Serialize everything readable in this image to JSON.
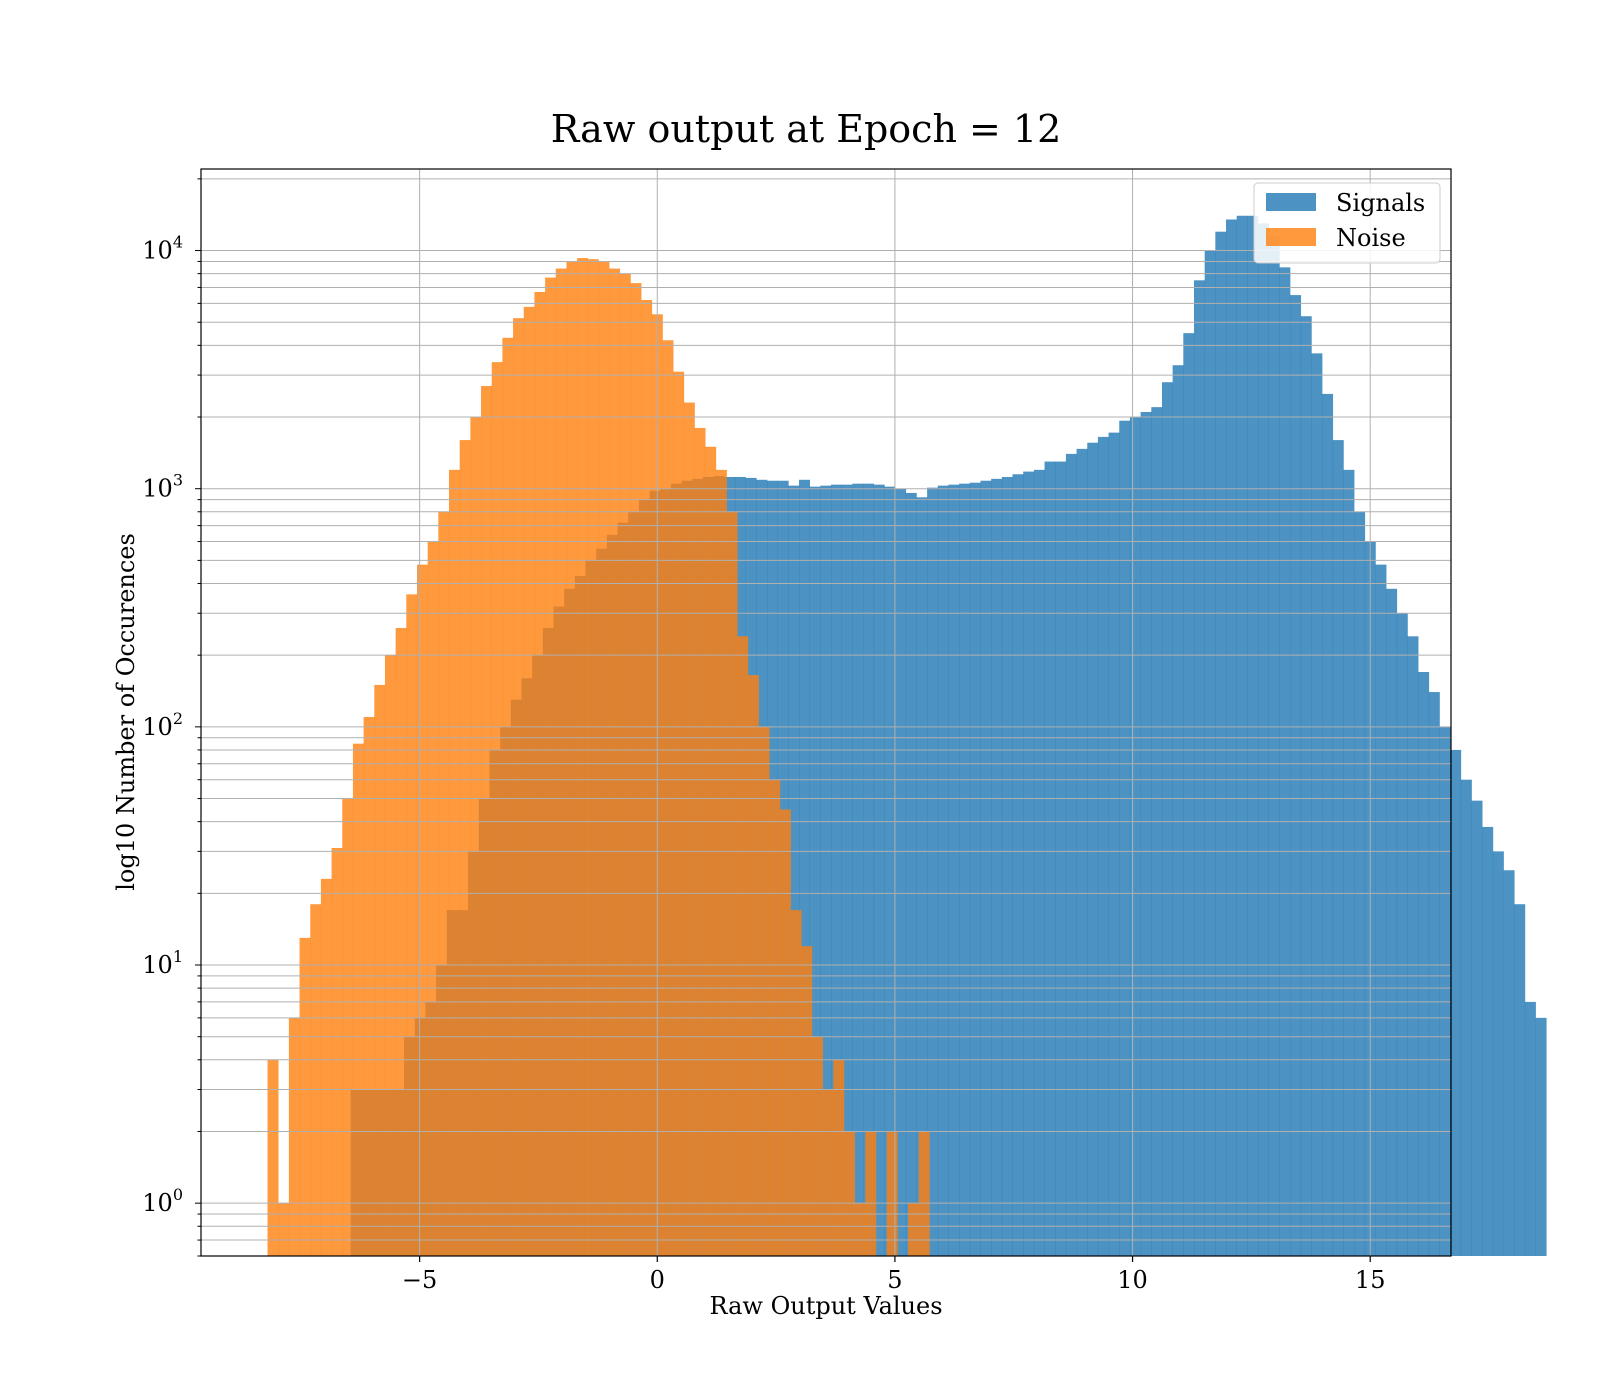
{
  "chart_data": {
    "type": "histogram",
    "title": "Raw output at Epoch = 12",
    "xlabel": "Raw Output Values",
    "ylabel": "log10 Number of Occurences",
    "xlim": [
      -9.6,
      16.7
    ],
    "ylim": [
      0.6,
      22000
    ],
    "yscale": "log",
    "grid": true,
    "legend_position": "top-right",
    "x_ticks": [
      {
        "value": -5,
        "label": "−5"
      },
      {
        "value": 0,
        "label": "0"
      },
      {
        "value": 5,
        "label": "5"
      },
      {
        "value": 10,
        "label": "10"
      },
      {
        "value": 15,
        "label": "15"
      }
    ],
    "y_ticks": [
      {
        "value": 1,
        "base": "10",
        "exp": "0"
      },
      {
        "value": 10,
        "base": "10",
        "exp": "1"
      },
      {
        "value": 100,
        "base": "10",
        "exp": "2"
      },
      {
        "value": 1000,
        "base": "10",
        "exp": "3"
      },
      {
        "value": 10000,
        "base": "10",
        "exp": "4"
      }
    ],
    "series": [
      {
        "name": "Signals",
        "color": "#1f77b4",
        "bin_start": -6.9,
        "bin_width": 0.2246,
        "counts": [
          0,
          0,
          3,
          3,
          3,
          3,
          3,
          5,
          6,
          7,
          10,
          17,
          17,
          30,
          50,
          80,
          100,
          130,
          160,
          200,
          260,
          320,
          380,
          430,
          500,
          560,
          640,
          720,
          800,
          900,
          980,
          1000,
          1050,
          1080,
          1100,
          1120,
          1130,
          1120,
          1120,
          1110,
          1090,
          1080,
          1080,
          1030,
          1090,
          1020,
          1030,
          1040,
          1040,
          1050,
          1050,
          1040,
          1020,
          1000,
          960,
          920,
          1010,
          1030,
          1040,
          1050,
          1060,
          1080,
          1100,
          1120,
          1150,
          1180,
          1200,
          1300,
          1300,
          1400,
          1470,
          1560,
          1650,
          1720,
          1930,
          2000,
          2100,
          2200,
          2800,
          3300,
          4500,
          7500,
          10000,
          12000,
          13500,
          14000,
          14000,
          13000,
          11500,
          8500,
          6500,
          5300,
          3700,
          2500,
          1600,
          1200,
          800,
          600,
          480,
          380,
          300,
          240,
          170,
          140,
          100,
          80,
          60,
          49,
          38,
          30,
          25,
          18,
          7,
          6
        ]
      },
      {
        "name": "Noise",
        "color": "#ff7f0e",
        "bin_start": -8.2,
        "bin_width": 0.2246,
        "counts": [
          4,
          1,
          6,
          13,
          18,
          23,
          31,
          50,
          85,
          110,
          150,
          200,
          260,
          360,
          480,
          600,
          800,
          1200,
          1600,
          2000,
          2700,
          3400,
          4300,
          5200,
          5800,
          6700,
          7700,
          8400,
          9000,
          9300,
          9200,
          9000,
          8400,
          8000,
          7300,
          6200,
          5400,
          4200,
          3100,
          2300,
          1800,
          1500,
          1200,
          800,
          240,
          165,
          100,
          60,
          45,
          17,
          12,
          5,
          3,
          4,
          2,
          1,
          2,
          0,
          2,
          0,
          1,
          2
        ]
      }
    ]
  }
}
